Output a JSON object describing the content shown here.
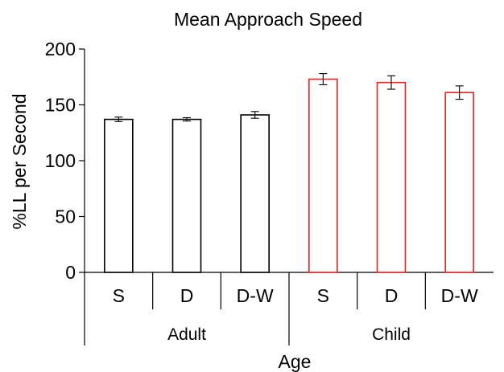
{
  "chart_data": {
    "type": "bar",
    "title": "Mean Approach Speed",
    "xlabel": "Age",
    "ylabel": "%LL per Second",
    "ylim": [
      0,
      200
    ],
    "yticks": [
      0,
      50,
      100,
      150,
      200
    ],
    "groups": [
      {
        "name": "Adult",
        "color": "#000000",
        "bars": [
          {
            "category": "S",
            "value": 137,
            "error": 2
          },
          {
            "category": "D",
            "value": 137,
            "error": 1.5
          },
          {
            "category": "D-W",
            "value": 141,
            "error": 3
          }
        ]
      },
      {
        "name": "Child",
        "color": "#e8211e",
        "bars": [
          {
            "category": "S",
            "value": 173,
            "error": 5
          },
          {
            "category": "D",
            "value": 170,
            "error": 6
          },
          {
            "category": "D-W",
            "value": 161,
            "error": 6
          }
        ]
      }
    ],
    "grid": false,
    "legend": "none"
  }
}
